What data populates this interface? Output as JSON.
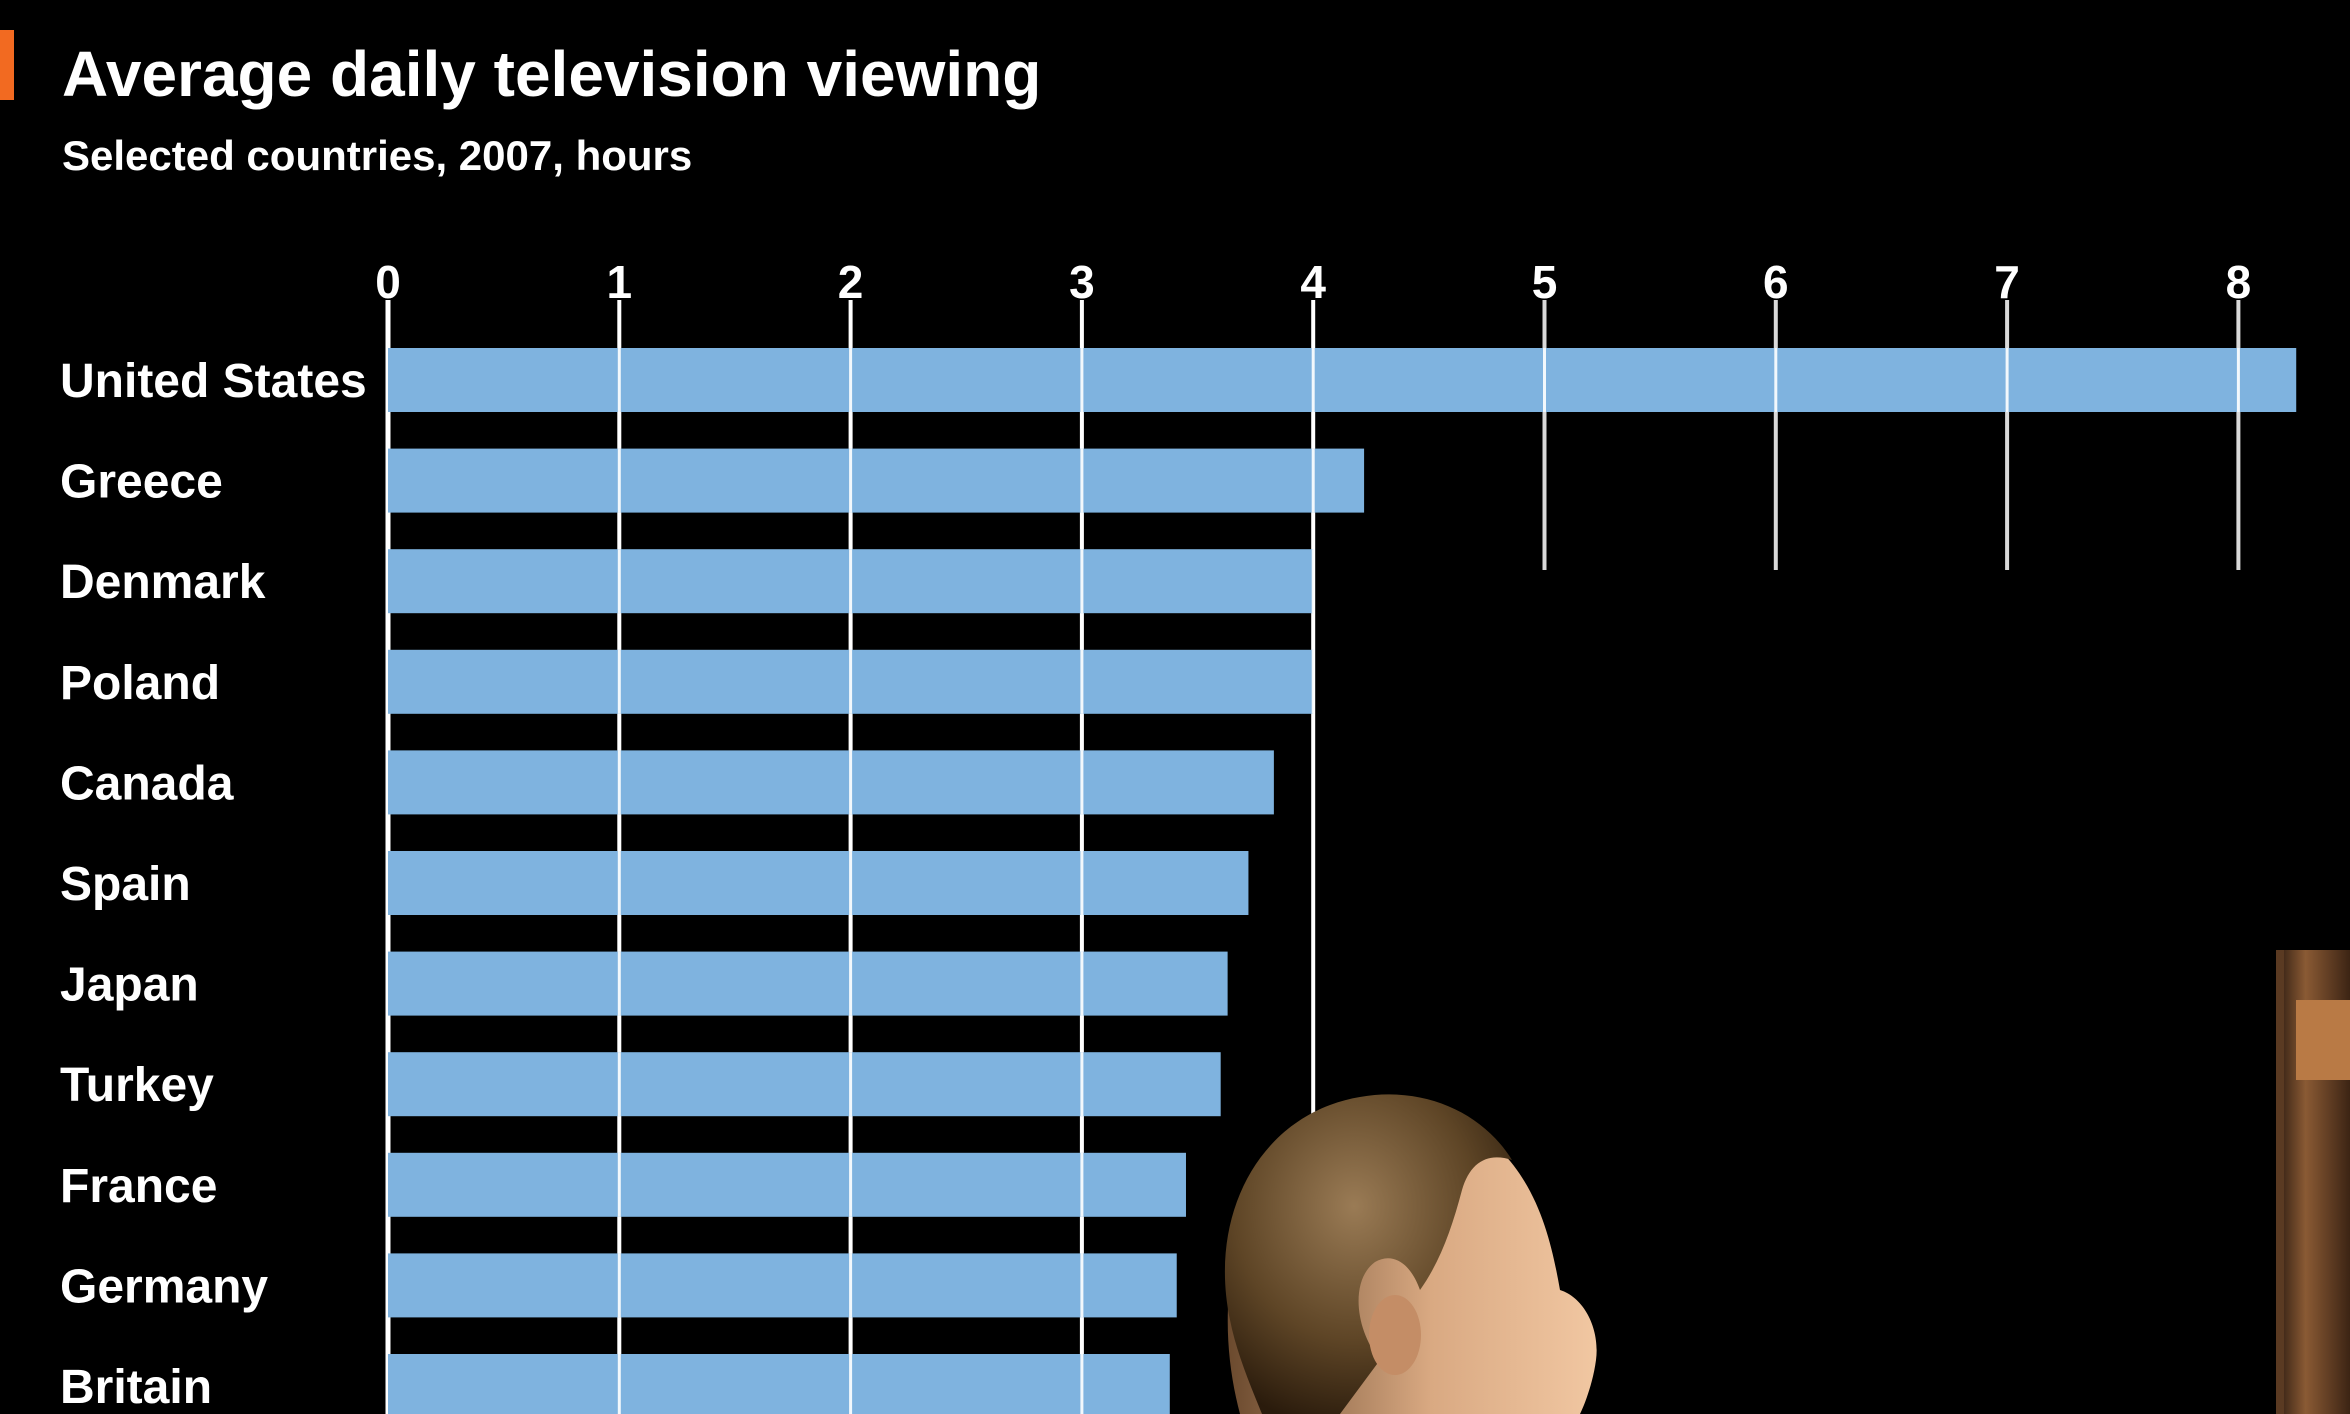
{
  "chart_data": {
    "type": "bar",
    "orientation": "horizontal",
    "title": "Average daily television viewing",
    "subtitle": "Selected countries, 2007, hours",
    "categories": [
      "United States",
      "Greece",
      "Denmark",
      "Poland",
      "Canada",
      "Spain",
      "Japan",
      "Turkey",
      "France",
      "Germany",
      "Britain"
    ],
    "values": [
      8.25,
      4.22,
      4.0,
      4.0,
      3.83,
      3.72,
      3.63,
      3.6,
      3.45,
      3.41,
      3.38
    ],
    "xlim": [
      0,
      8.3
    ],
    "xticks": [
      "0",
      "1",
      "2",
      "3",
      "4",
      "5",
      "6",
      "7",
      "8"
    ],
    "grid": true,
    "xaxis_position": "top"
  },
  "colors": {
    "background": "#000000",
    "bar": "#7fb3df",
    "gridline": "#ffffff",
    "text": "#ffffff",
    "title_accent": "#f26a21"
  }
}
